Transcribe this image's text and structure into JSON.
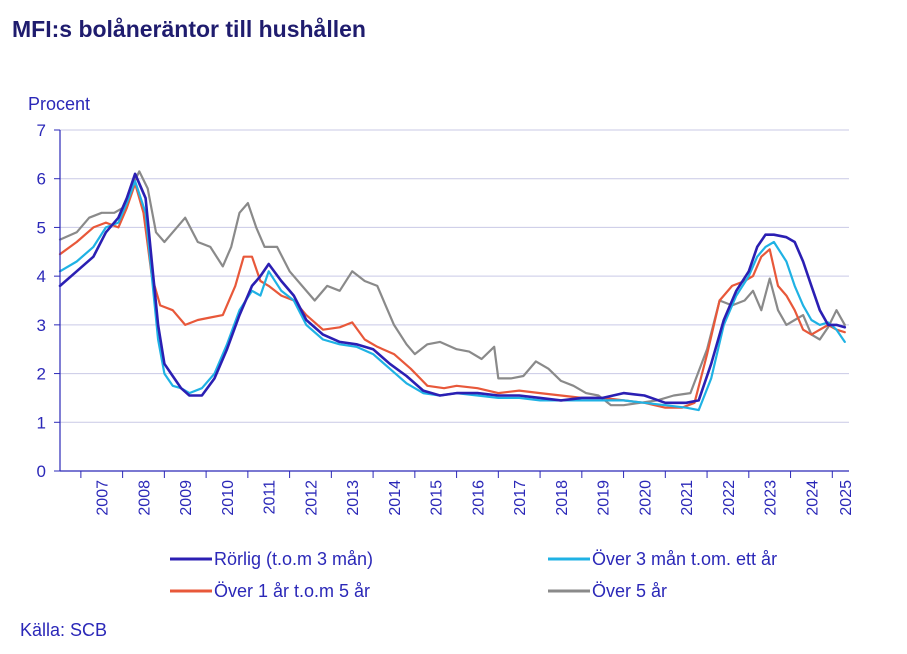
{
  "title": "MFI:s bolåneräntor till hushållen",
  "source": "Källa: SCB",
  "chart_data": {
    "type": "line",
    "title": "MFI:s bolåneräntor till hushållen",
    "ylabel": "Procent",
    "xlabel": "",
    "ylim": [
      0,
      7
    ],
    "xlim": [
      2006.5,
      2025.4
    ],
    "yticks": [
      "0",
      "1",
      "2",
      "3",
      "4",
      "5",
      "6",
      "7"
    ],
    "year_ticks": [
      "2007",
      "2008",
      "2009",
      "2010",
      "2011",
      "2012",
      "2013",
      "2014",
      "2015",
      "2016",
      "2017",
      "2018",
      "2019",
      "2020",
      "2021",
      "2022",
      "2023",
      "2024",
      "2025"
    ],
    "grid": true,
    "legend_position": "bottom",
    "series": [
      {
        "name": "Rörlig (t.o.m 3 mån)",
        "color": "#2b1fb3",
        "x": [
          2006.5,
          2006.9,
          2007.3,
          2007.6,
          2007.9,
          2008.1,
          2008.3,
          2008.55,
          2008.7,
          2008.85,
          2009.0,
          2009.2,
          2009.4,
          2009.6,
          2009.9,
          2010.2,
          2010.5,
          2010.8,
          2011.1,
          2011.3,
          2011.5,
          2011.8,
          2012.1,
          2012.4,
          2012.8,
          2013.2,
          2013.6,
          2014.0,
          2014.4,
          2014.8,
          2015.2,
          2015.6,
          2016.0,
          2016.5,
          2017.0,
          2017.5,
          2018.0,
          2018.5,
          2019.0,
          2019.5,
          2020.0,
          2020.5,
          2021.0,
          2021.5,
          2021.8,
          2022.1,
          2022.4,
          2022.7,
          2023.0,
          2023.2,
          2023.4,
          2023.6,
          2023.9,
          2024.1,
          2024.3,
          2024.5,
          2024.7,
          2024.9,
          2025.1,
          2025.3
        ],
        "y": [
          3.8,
          4.1,
          4.4,
          4.9,
          5.2,
          5.6,
          6.1,
          5.6,
          4.3,
          3.0,
          2.2,
          1.95,
          1.7,
          1.55,
          1.55,
          1.9,
          2.5,
          3.2,
          3.8,
          4.0,
          4.25,
          3.9,
          3.6,
          3.1,
          2.8,
          2.65,
          2.6,
          2.5,
          2.2,
          1.95,
          1.65,
          1.55,
          1.6,
          1.6,
          1.55,
          1.55,
          1.5,
          1.45,
          1.5,
          1.5,
          1.6,
          1.55,
          1.4,
          1.4,
          1.45,
          2.2,
          3.1,
          3.7,
          4.1,
          4.6,
          4.85,
          4.85,
          4.8,
          4.7,
          4.3,
          3.8,
          3.3,
          3.0,
          3.0,
          2.95
        ]
      },
      {
        "name": "Över 3 mån t.om. ett år",
        "color": "#1fb2e4",
        "x": [
          2006.5,
          2006.9,
          2007.3,
          2007.6,
          2007.9,
          2008.1,
          2008.3,
          2008.55,
          2008.7,
          2008.85,
          2009.0,
          2009.2,
          2009.4,
          2009.6,
          2009.9,
          2010.2,
          2010.5,
          2010.8,
          2011.1,
          2011.3,
          2011.5,
          2011.8,
          2012.1,
          2012.4,
          2012.8,
          2013.2,
          2013.6,
          2014.0,
          2014.4,
          2014.8,
          2015.2,
          2015.6,
          2016.0,
          2016.5,
          2017.0,
          2017.5,
          2018.0,
          2018.5,
          2019.0,
          2019.5,
          2020.0,
          2020.5,
          2021.0,
          2021.5,
          2021.8,
          2022.1,
          2022.4,
          2022.7,
          2023.0,
          2023.2,
          2023.4,
          2023.6,
          2023.9,
          2024.1,
          2024.3,
          2024.5,
          2024.7,
          2024.9,
          2025.1,
          2025.3
        ],
        "y": [
          4.1,
          4.3,
          4.6,
          5.0,
          5.1,
          5.5,
          5.95,
          5.3,
          4.0,
          2.7,
          2.0,
          1.75,
          1.7,
          1.6,
          1.7,
          2.0,
          2.6,
          3.3,
          3.7,
          3.6,
          4.1,
          3.7,
          3.5,
          3.0,
          2.7,
          2.6,
          2.55,
          2.4,
          2.1,
          1.8,
          1.6,
          1.55,
          1.6,
          1.55,
          1.5,
          1.5,
          1.45,
          1.45,
          1.45,
          1.45,
          1.45,
          1.4,
          1.35,
          1.3,
          1.25,
          1.9,
          3.0,
          3.6,
          4.0,
          4.4,
          4.6,
          4.7,
          4.3,
          3.8,
          3.4,
          3.1,
          3.0,
          3.05,
          2.9,
          2.65
        ]
      },
      {
        "name": "Över 1 år t.o.m 5 år",
        "color": "#e8583a",
        "x": [
          2006.5,
          2006.9,
          2007.3,
          2007.6,
          2007.9,
          2008.1,
          2008.3,
          2008.5,
          2008.7,
          2008.9,
          2009.2,
          2009.5,
          2009.8,
          2010.1,
          2010.4,
          2010.7,
          2010.9,
          2011.1,
          2011.3,
          2011.5,
          2011.8,
          2012.1,
          2012.4,
          2012.8,
          2013.2,
          2013.5,
          2013.8,
          2014.1,
          2014.5,
          2014.9,
          2015.3,
          2015.7,
          2016.0,
          2016.5,
          2017.0,
          2017.5,
          2018.0,
          2018.5,
          2019.0,
          2019.5,
          2020.0,
          2020.5,
          2021.0,
          2021.4,
          2021.7,
          2022.0,
          2022.3,
          2022.6,
          2022.9,
          2023.1,
          2023.3,
          2023.5,
          2023.7,
          2023.9,
          2024.1,
          2024.3,
          2024.5,
          2024.7,
          2024.9,
          2025.1,
          2025.3
        ],
        "y": [
          4.45,
          4.7,
          5.0,
          5.1,
          5.0,
          5.4,
          5.9,
          5.3,
          4.0,
          3.4,
          3.3,
          3.0,
          3.1,
          3.15,
          3.2,
          3.8,
          4.4,
          4.4,
          3.9,
          3.8,
          3.6,
          3.5,
          3.2,
          2.9,
          2.95,
          3.05,
          2.7,
          2.55,
          2.4,
          2.1,
          1.75,
          1.7,
          1.75,
          1.7,
          1.6,
          1.65,
          1.6,
          1.55,
          1.5,
          1.5,
          1.45,
          1.4,
          1.3,
          1.3,
          1.4,
          2.4,
          3.5,
          3.8,
          3.9,
          4.0,
          4.4,
          4.55,
          3.8,
          3.6,
          3.3,
          2.9,
          2.8,
          2.9,
          3.0,
          2.9,
          2.85
        ]
      },
      {
        "name": "Över 5 år",
        "color": "#8a8a8a",
        "x": [
          2006.5,
          2006.9,
          2007.2,
          2007.5,
          2007.8,
          2008.0,
          2008.2,
          2008.4,
          2008.6,
          2008.8,
          2009.0,
          2009.2,
          2009.5,
          2009.8,
          2010.1,
          2010.4,
          2010.6,
          2010.8,
          2011.0,
          2011.2,
          2011.4,
          2011.7,
          2012.0,
          2012.3,
          2012.6,
          2012.9,
          2013.2,
          2013.5,
          2013.8,
          2014.1,
          2014.3,
          2014.5,
          2014.8,
          2015.0,
          2015.3,
          2015.6,
          2016.0,
          2016.3,
          2016.6,
          2016.9,
          2017.0,
          2017.3,
          2017.6,
          2017.9,
          2018.2,
          2018.5,
          2018.8,
          2019.1,
          2019.4,
          2019.7,
          2020.0,
          2020.4,
          2020.8,
          2021.2,
          2021.6,
          2022.0,
          2022.3,
          2022.6,
          2022.9,
          2023.1,
          2023.3,
          2023.5,
          2023.7,
          2023.9,
          2024.1,
          2024.3,
          2024.5,
          2024.7,
          2024.9,
          2025.1,
          2025.3
        ],
        "y": [
          4.75,
          4.9,
          5.2,
          5.3,
          5.3,
          5.4,
          5.8,
          6.15,
          5.8,
          4.9,
          4.7,
          4.9,
          5.2,
          4.7,
          4.6,
          4.2,
          4.6,
          5.3,
          5.5,
          5.0,
          4.6,
          4.6,
          4.1,
          3.8,
          3.5,
          3.8,
          3.7,
          4.1,
          3.9,
          3.8,
          3.4,
          3.0,
          2.6,
          2.4,
          2.6,
          2.65,
          2.5,
          2.45,
          2.3,
          2.55,
          1.9,
          1.9,
          1.95,
          2.25,
          2.1,
          1.85,
          1.75,
          1.6,
          1.55,
          1.35,
          1.35,
          1.4,
          1.45,
          1.55,
          1.6,
          2.5,
          3.5,
          3.4,
          3.5,
          3.7,
          3.3,
          3.95,
          3.3,
          3.0,
          3.1,
          3.2,
          2.8,
          2.7,
          2.95,
          3.3,
          3.0
        ]
      }
    ]
  }
}
